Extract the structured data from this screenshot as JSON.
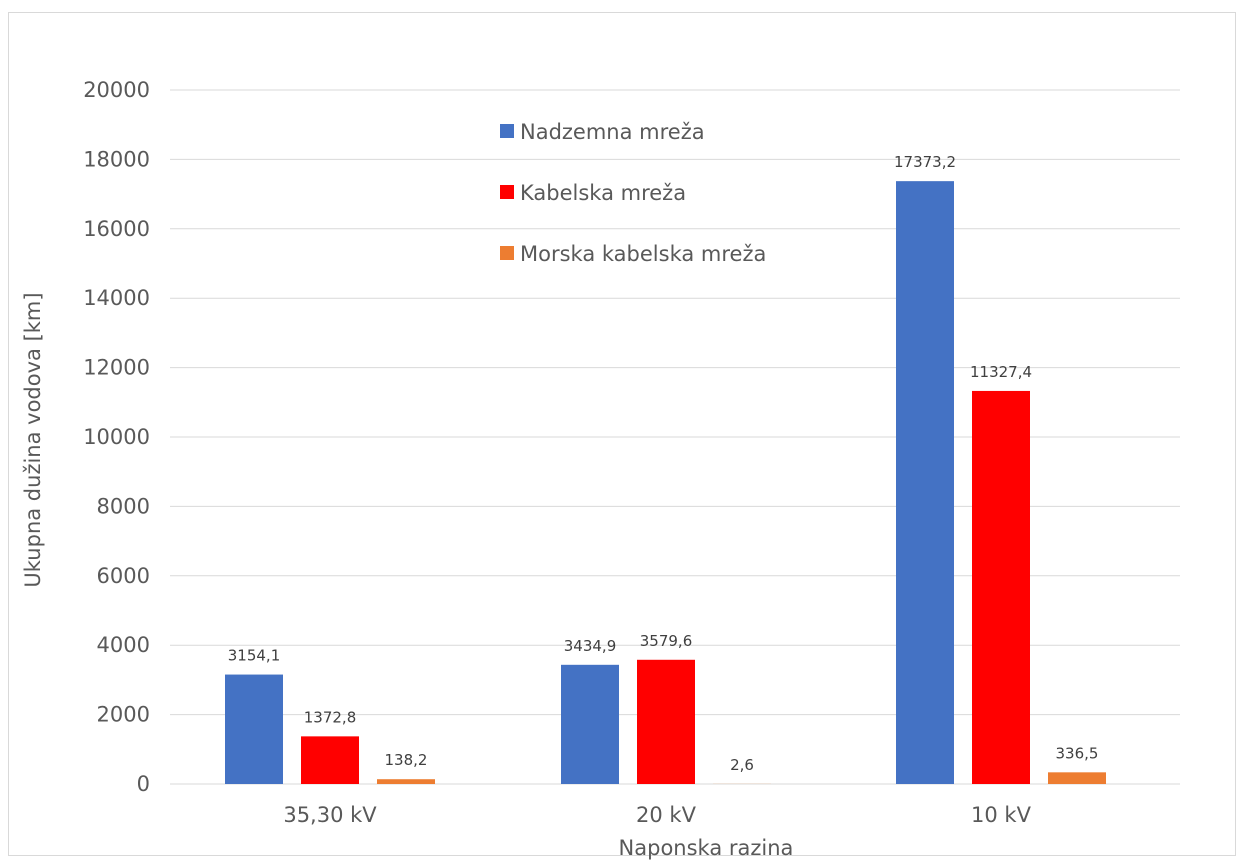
{
  "chart_data": {
    "type": "bar",
    "title": "",
    "xlabel": "Naponska razina",
    "ylabel": "Ukupna dužina vodova [km]",
    "categories": [
      "35,30 kV",
      "20 kV",
      "10 kV"
    ],
    "ylim": [
      0,
      20000
    ],
    "yticks": [
      0,
      2000,
      4000,
      6000,
      8000,
      10000,
      12000,
      14000,
      16000,
      18000,
      20000
    ],
    "grid": true,
    "legend_position": "top-center",
    "series": [
      {
        "name": "Nadzemna mreža",
        "color": "#4472c4",
        "values": [
          3154.1,
          3434.9,
          17373.2
        ],
        "labels": [
          "3154,1",
          "3434,9",
          "17373,2"
        ]
      },
      {
        "name": "Kabelska mreža",
        "color": "#ff0000",
        "values": [
          1372.8,
          3579.6,
          11327.4
        ],
        "labels": [
          "1372,8",
          "3579,6",
          "11327,4"
        ]
      },
      {
        "name": "Morska kabelska mreža",
        "color": "#ed7d31",
        "values": [
          138.2,
          2.6,
          336.5
        ],
        "labels": [
          "138,2",
          "2,6",
          "336,5"
        ]
      }
    ]
  }
}
